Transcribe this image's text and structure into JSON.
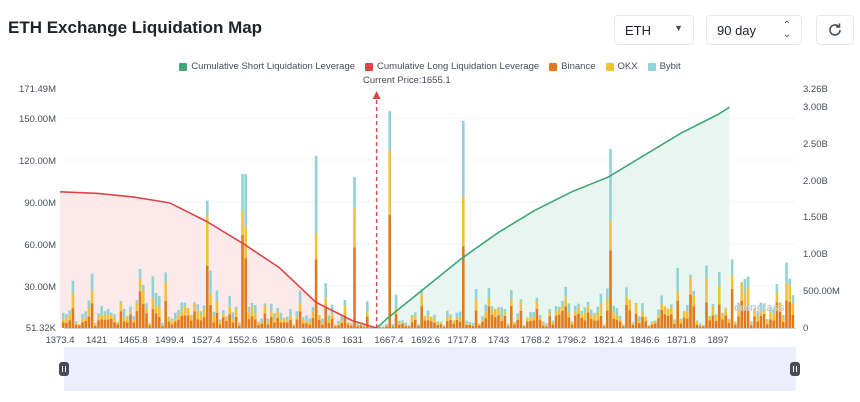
{
  "header": {
    "title": "ETH Exchange Liquidation Map",
    "coin_select": "ETH",
    "range_select": "90 day",
    "refresh_icon": "refresh-icon"
  },
  "legend": [
    {
      "label": "Cumulative Short Liquidation Leverage",
      "color": "#3fa67a"
    },
    {
      "label": "Cumulative Long Liquidation Leverage",
      "color": "#d9474b"
    },
    {
      "label": "Binance",
      "color": "#e07a1c"
    },
    {
      "label": "OKX",
      "color": "#f0c23a"
    },
    {
      "label": "Bybit",
      "color": "#8fd3d6"
    }
  ],
  "current_price_label": "Current Price:1655.1",
  "watermark": "coinglass",
  "chart_data": {
    "type": "bar",
    "x_tick_labels": [
      "1373.4",
      "1421",
      "1465.8",
      "1499.4",
      "1527.4",
      "1552.6",
      "1580.6",
      "1605.8",
      "1631",
      "1667.4",
      "1692.6",
      "1717.8",
      "1743",
      "1768.2",
      "1796.2",
      "1821.4",
      "1846.6",
      "1871.8",
      "1897"
    ],
    "y_left_ticks": [
      "171.49M",
      "150.00M",
      "120.00M",
      "90.00M",
      "60.00M",
      "30.00M",
      "51.32K"
    ],
    "y_right_ticks": [
      "3.26B",
      "3.00B",
      "2.50B",
      "2.00B",
      "1.50B",
      "1.00B",
      "500.00M",
      "0"
    ],
    "current_price": 1655.1,
    "series": [
      {
        "name": "Cumulative Long Liquidation Leverage",
        "x": [
          1373.4,
          1421,
          1465.8,
          1499.4,
          1527.4,
          1552.6,
          1580.6,
          1605.8,
          1631,
          1655.1
        ],
        "values": [
          1850000000.0,
          1830000000.0,
          1780000000.0,
          1700000000.0,
          1450000000.0,
          1150000000.0,
          820000000.0,
          350000000.0,
          100000000.0,
          0
        ]
      },
      {
        "name": "Cumulative Short Liquidation Leverage",
        "x": [
          1655.1,
          1667.4,
          1692.6,
          1717.8,
          1743,
          1768.2,
          1796.2,
          1821.4,
          1846.6,
          1871.8,
          1897,
          1905
        ],
        "values": [
          0,
          150000000.0,
          550000000.0,
          950000000.0,
          1300000000.0,
          1600000000.0,
          1850000000.0,
          2050000000.0,
          2350000000.0,
          2650000000.0,
          2900000000.0,
          3000000000.0
        ]
      }
    ],
    "bar_peaks": [
      {
        "x": 1527.4,
        "total": 91000000
      },
      {
        "x": 1552.6,
        "total": 110000000
      },
      {
        "x": 1605.8,
        "total": 123000000
      },
      {
        "x": 1631,
        "total": 108000000
      },
      {
        "x": 1667.4,
        "total": 155000000
      },
      {
        "x": 1717.8,
        "total": 148000000
      },
      {
        "x": 1821.4,
        "total": 128000000
      }
    ],
    "y_left_range": [
      0,
      171490000
    ],
    "y_right_range": [
      0,
      3260000000
    ]
  }
}
